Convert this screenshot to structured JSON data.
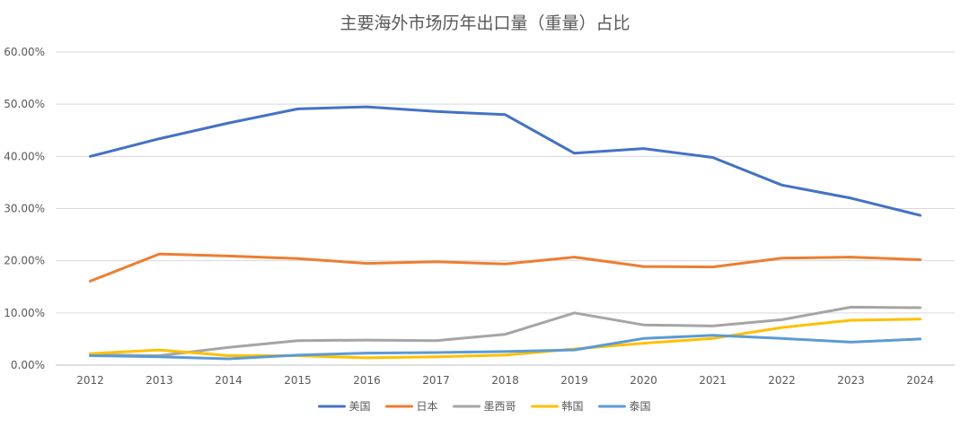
{
  "chart_data": {
    "type": "line",
    "title": "主要海外市场历年出口量（重量）占比",
    "xlabel": "",
    "ylabel": "",
    "x": [
      "2012",
      "2013",
      "2014",
      "2015",
      "2016",
      "2017",
      "2018",
      "2019",
      "2020",
      "2021",
      "2022",
      "2023",
      "2024"
    ],
    "ylim": [
      0,
      0.6
    ],
    "yticks": [
      "0.00%",
      "10.00%",
      "20.00%",
      "30.00%",
      "40.00%",
      "50.00%",
      "60.00%"
    ],
    "grid": true,
    "legend_position": "bottom",
    "series": [
      {
        "name": "美国",
        "color": "#4472C4",
        "values": [
          0.4,
          0.434,
          0.464,
          0.491,
          0.495,
          0.486,
          0.48,
          0.406,
          0.415,
          0.398,
          0.345,
          0.32,
          0.287
        ]
      },
      {
        "name": "日本",
        "color": "#ED7D31",
        "values": [
          0.161,
          0.213,
          0.209,
          0.204,
          0.195,
          0.198,
          0.194,
          0.207,
          0.189,
          0.188,
          0.205,
          0.207,
          0.202
        ]
      },
      {
        "name": "墨西哥",
        "color": "#A5A5A5",
        "values": [
          0.02,
          0.018,
          0.034,
          0.047,
          0.048,
          0.047,
          0.059,
          0.1,
          0.077,
          0.075,
          0.087,
          0.111,
          0.11
        ]
      },
      {
        "name": "韩国",
        "color": "#FFC000",
        "values": [
          0.022,
          0.029,
          0.018,
          0.018,
          0.014,
          0.016,
          0.019,
          0.031,
          0.042,
          0.051,
          0.072,
          0.086,
          0.088
        ]
      },
      {
        "name": "泰国",
        "color": "#5B9BD5",
        "values": [
          0.018,
          0.016,
          0.012,
          0.019,
          0.023,
          0.024,
          0.026,
          0.029,
          0.051,
          0.057,
          0.051,
          0.044,
          0.05
        ]
      }
    ]
  }
}
